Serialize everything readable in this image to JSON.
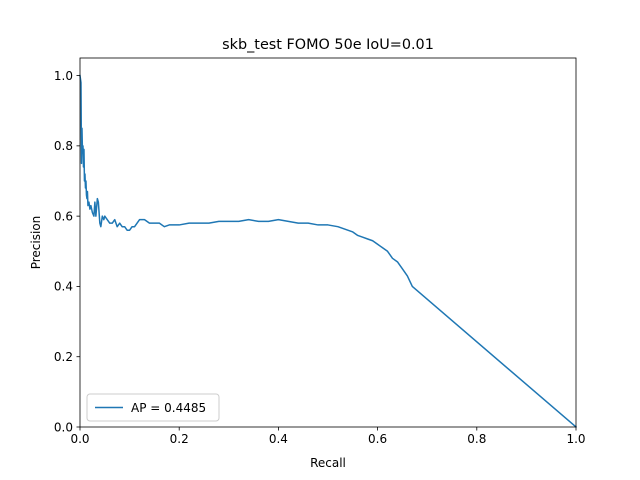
{
  "chart_data": {
    "type": "line",
    "title": "skb_test FOMO 50e IoU=0.01",
    "xlabel": "Recall",
    "ylabel": "Precision",
    "xlim": [
      0.0,
      1.0
    ],
    "ylim": [
      0.0,
      1.05
    ],
    "xticks": [
      "0.0",
      "0.2",
      "0.4",
      "0.6",
      "0.8",
      "1.0"
    ],
    "yticks": [
      "0.0",
      "0.2",
      "0.4",
      "0.6",
      "0.8",
      "1.0"
    ],
    "grid": false,
    "legend_position": "lower-left",
    "series": [
      {
        "name": "AP = 0.4485",
        "color": "#1f77b4",
        "x": [
          0.0,
          0.002,
          0.003,
          0.004,
          0.005,
          0.006,
          0.007,
          0.008,
          0.009,
          0.01,
          0.011,
          0.012,
          0.013,
          0.014,
          0.015,
          0.016,
          0.018,
          0.02,
          0.022,
          0.025,
          0.028,
          0.03,
          0.032,
          0.035,
          0.037,
          0.04,
          0.042,
          0.045,
          0.048,
          0.05,
          0.055,
          0.06,
          0.065,
          0.07,
          0.075,
          0.08,
          0.085,
          0.09,
          0.095,
          0.1,
          0.105,
          0.11,
          0.115,
          0.12,
          0.13,
          0.14,
          0.15,
          0.16,
          0.17,
          0.18,
          0.2,
          0.22,
          0.24,
          0.26,
          0.28,
          0.3,
          0.32,
          0.34,
          0.36,
          0.38,
          0.4,
          0.42,
          0.44,
          0.46,
          0.48,
          0.5,
          0.52,
          0.53,
          0.54,
          0.55,
          0.56,
          0.57,
          0.58,
          0.59,
          0.6,
          0.61,
          0.62,
          0.63,
          0.64,
          0.65,
          0.66,
          0.67,
          1.0
        ],
        "y": [
          1.0,
          0.98,
          0.75,
          0.85,
          0.78,
          0.8,
          0.74,
          0.79,
          0.7,
          0.72,
          0.68,
          0.7,
          0.66,
          0.65,
          0.67,
          0.63,
          0.64,
          0.62,
          0.63,
          0.61,
          0.6,
          0.64,
          0.6,
          0.65,
          0.64,
          0.58,
          0.57,
          0.6,
          0.59,
          0.6,
          0.59,
          0.58,
          0.58,
          0.59,
          0.57,
          0.58,
          0.57,
          0.57,
          0.56,
          0.56,
          0.57,
          0.57,
          0.58,
          0.59,
          0.59,
          0.58,
          0.58,
          0.58,
          0.57,
          0.575,
          0.575,
          0.58,
          0.58,
          0.58,
          0.585,
          0.585,
          0.585,
          0.59,
          0.585,
          0.585,
          0.59,
          0.585,
          0.58,
          0.58,
          0.575,
          0.575,
          0.57,
          0.565,
          0.56,
          0.555,
          0.545,
          0.54,
          0.535,
          0.53,
          0.52,
          0.51,
          0.5,
          0.48,
          0.47,
          0.45,
          0.43,
          0.4,
          0.0
        ]
      }
    ]
  }
}
